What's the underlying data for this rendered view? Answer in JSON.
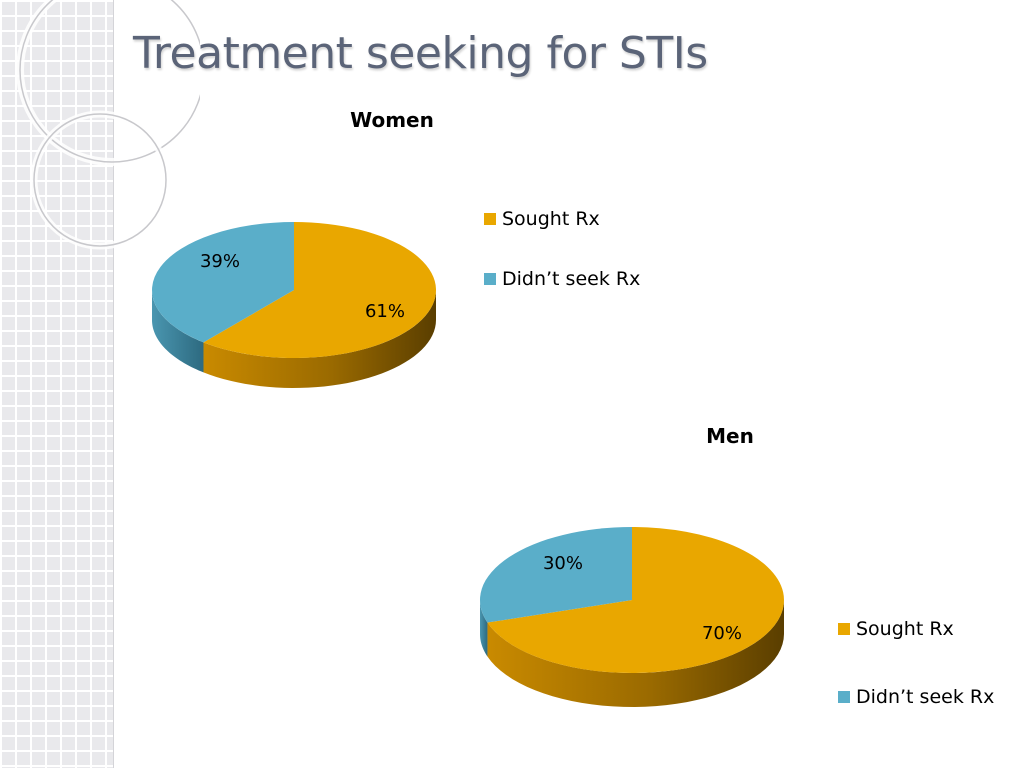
{
  "slide": {
    "title": "Treatment seeking for STIs"
  },
  "colors": {
    "sought": "#e9a700",
    "didnt": "#5aaec9",
    "title": "#5b6478"
  },
  "chart_data": [
    {
      "type": "pie",
      "title": "Women",
      "categories": [
        "Sought Rx",
        "Didn’t seek Rx"
      ],
      "values": [
        61,
        39
      ],
      "labels": [
        "61%",
        "39%"
      ],
      "legend": "right"
    },
    {
      "type": "pie",
      "title": "Men",
      "categories": [
        "Sought Rx",
        "Didn’t seek Rx"
      ],
      "values": [
        70,
        30
      ],
      "labels": [
        "70%",
        "30%"
      ],
      "legend": "right"
    }
  ]
}
